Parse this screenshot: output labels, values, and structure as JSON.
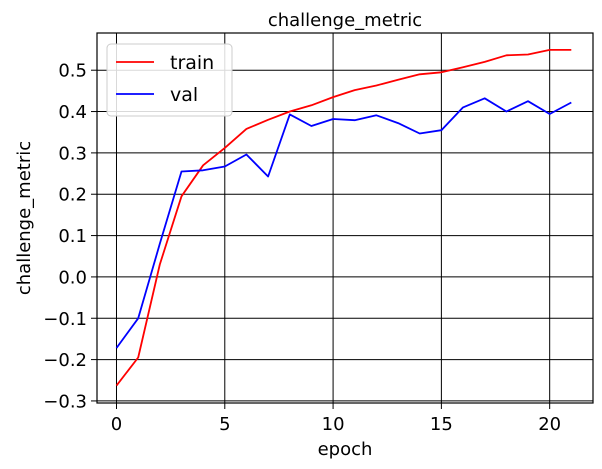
{
  "chart_data": {
    "type": "line",
    "title": "challenge_metric",
    "xlabel": "epoch",
    "ylabel": "challenge_metric",
    "xlim": [
      -0.9,
      22.0
    ],
    "ylim": [
      -0.305,
      0.59
    ],
    "xticks": [
      0,
      5,
      10,
      15,
      20
    ],
    "yticks": [
      -0.3,
      -0.2,
      -0.1,
      0.0,
      0.1,
      0.2,
      0.3,
      0.4,
      0.5
    ],
    "ytick_labels": [
      "−0.3",
      "−0.2",
      "−0.1",
      "0.0",
      "0.1",
      "0.2",
      "0.3",
      "0.4",
      "0.5"
    ],
    "grid": true,
    "legend_position": "upper-left",
    "x": [
      0,
      1,
      2,
      3,
      4,
      5,
      6,
      7,
      8,
      9,
      10,
      11,
      12,
      13,
      14,
      15,
      16,
      17,
      18,
      19,
      20,
      21
    ],
    "series": [
      {
        "name": "train",
        "color": "#ff0000",
        "values": [
          -0.263,
          -0.195,
          0.03,
          0.195,
          0.27,
          0.312,
          0.358,
          0.38,
          0.4,
          0.415,
          0.435,
          0.452,
          0.463,
          0.477,
          0.49,
          0.495,
          0.507,
          0.52,
          0.536,
          0.538,
          0.549,
          0.549
        ]
      },
      {
        "name": "val",
        "color": "#0000ff",
        "values": [
          -0.172,
          -0.1,
          0.08,
          0.255,
          0.258,
          0.267,
          0.296,
          0.243,
          0.393,
          0.365,
          0.382,
          0.379,
          0.391,
          0.372,
          0.347,
          0.355,
          0.41,
          0.432,
          0.4,
          0.425,
          0.394,
          0.422
        ]
      }
    ]
  }
}
